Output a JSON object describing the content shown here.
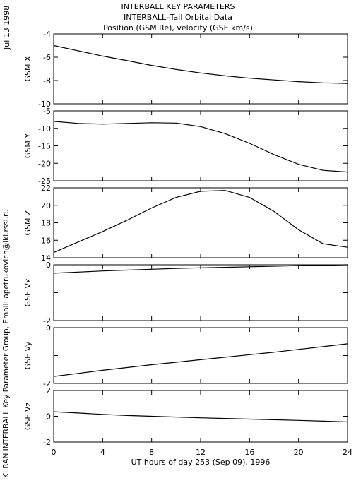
{
  "header": {
    "title": "INTERBALL KEY PARAMETERS",
    "subtitle": "INTERBALL–Tail Orbital Data",
    "description": "Position (GSM Re), velocity (GSE km/s)"
  },
  "side_labels": {
    "date": "Jul 13 1998",
    "credit": "IKI RAN INTERBALL Key Parameter Group, Email: apetrukovich@iki.rssi.ru"
  },
  "chart_data": {
    "type": "line",
    "x": [
      0,
      2,
      4,
      6,
      8,
      10,
      12,
      14,
      16,
      18,
      20,
      22,
      24
    ],
    "xlabel": "UT hours of day 253 (Sep 09), 1996",
    "xlim": [
      0,
      24
    ],
    "xticks": [
      "0",
      "4",
      "8",
      "12",
      "16",
      "20",
      "24"
    ],
    "panels": [
      {
        "ylabel": "GSM X",
        "ylim": [
          -10,
          -4
        ],
        "yticks": [
          "-4",
          "-6",
          "-8",
          "-10"
        ],
        "values": [
          -5.0,
          -5.45,
          -5.9,
          -6.3,
          -6.7,
          -7.05,
          -7.35,
          -7.6,
          -7.8,
          -7.95,
          -8.1,
          -8.2,
          -8.25
        ]
      },
      {
        "ylabel": "GSM Y",
        "ylim": [
          -25,
          -5
        ],
        "yticks": [
          "-5",
          "-10",
          "-15",
          "-20",
          "-25"
        ],
        "values": [
          -8.0,
          -8.6,
          -8.8,
          -8.6,
          -8.4,
          -8.5,
          -9.5,
          -11.5,
          -14.3,
          -17.5,
          -20.3,
          -22.0,
          -22.5
        ]
      },
      {
        "ylabel": "GSM Z",
        "ylim": [
          14,
          22
        ],
        "yticks": [
          "22",
          "20",
          "18",
          "16",
          "14"
        ],
        "values": [
          14.6,
          15.8,
          17.0,
          18.3,
          19.7,
          20.9,
          21.6,
          21.7,
          20.9,
          19.3,
          17.2,
          15.6,
          15.2
        ]
      },
      {
        "ylabel": "GSE Vx",
        "ylim": [
          -2,
          0
        ],
        "yticks": [
          "0",
          "",
          "-2"
        ],
        "values": [
          -0.3,
          -0.26,
          -0.22,
          -0.19,
          -0.16,
          -0.13,
          -0.11,
          -0.09,
          -0.07,
          -0.05,
          -0.03,
          -0.015,
          0.0
        ]
      },
      {
        "ylabel": "GSE Vy",
        "ylim": [
          -2,
          0
        ],
        "yticks": [
          "0",
          "",
          "-2"
        ],
        "values": [
          -1.75,
          -1.64,
          -1.53,
          -1.43,
          -1.33,
          -1.24,
          -1.15,
          -1.06,
          -0.97,
          -0.88,
          -0.78,
          -0.68,
          -0.58
        ]
      },
      {
        "ylabel": "GSE Vz",
        "ylim": [
          -2,
          2
        ],
        "yticks": [
          "2",
          "0",
          "-2"
        ],
        "values": [
          0.35,
          0.25,
          0.15,
          0.06,
          0.0,
          -0.06,
          -0.12,
          -0.17,
          -0.22,
          -0.27,
          -0.32,
          -0.38,
          -0.44
        ]
      }
    ]
  }
}
